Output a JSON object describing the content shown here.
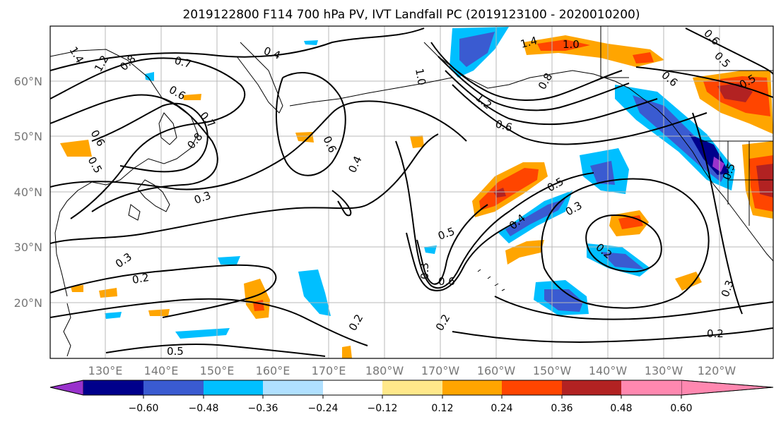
{
  "title": "2019122800 F114 700 hPa PV, IVT Landfall PC (2019123100 - 2020010200)",
  "map": {
    "lat_labels": [
      "60°N",
      "50°N",
      "40°N",
      "30°N",
      "20°N"
    ],
    "lon_labels": [
      "130°E",
      "140°E",
      "150°E",
      "160°E",
      "170°E",
      "180°W",
      "170°W",
      "160°W",
      "150°W",
      "140°W",
      "130°W",
      "120°W"
    ],
    "contour_labels": [
      "1.4",
      "1.2",
      "0.8",
      "0.7",
      "0.6",
      "0.7",
      "0.8",
      "0.6",
      "0.5",
      "0.4",
      "0.3",
      "0.6",
      "0.4",
      "1.0",
      "1.4",
      "1.2",
      "0.6",
      "1.0",
      "0.8",
      "0.6",
      "0.5",
      "0.6",
      "0.5",
      "0.5",
      "0.5",
      "0.3",
      "0.4",
      "0.5",
      "0.3",
      "0.2",
      "0.6",
      "0.3",
      "0.2",
      "0.2",
      "0.5",
      "0.2",
      "0.3",
      "0.2"
    ]
  },
  "colorbar": {
    "ticks": [
      "−0.60",
      "−0.48",
      "−0.36",
      "−0.24",
      "−0.12",
      "0.12",
      "0.24",
      "0.36",
      "0.48",
      "0.60"
    ],
    "colors": [
      "#9932cc",
      "#00008b",
      "#3a5bd1",
      "#00bfff",
      "#b0e0ff",
      "#ffffff",
      "#ffe88a",
      "#ffa500",
      "#ff4500",
      "#b22222",
      "#ff88b0"
    ]
  }
}
